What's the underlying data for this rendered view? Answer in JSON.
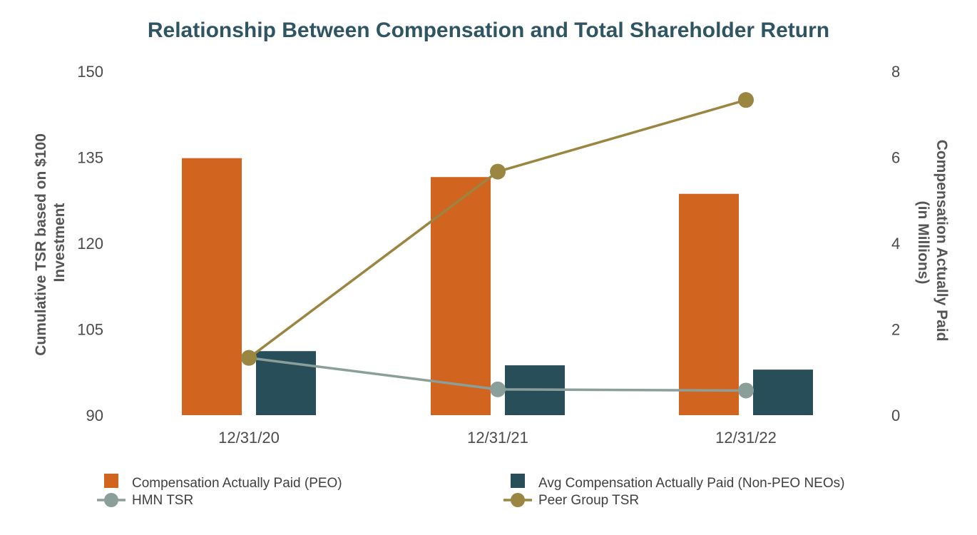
{
  "chart_data": {
    "type": "bar+line",
    "title": "Relationship Between Compensation and Total Shareholder Return",
    "categories": [
      "12/31/20",
      "12/31/21",
      "12/31/22"
    ],
    "left_axis": {
      "label_line1": "Cumulative TSR based on $100",
      "label_line2": "Investment",
      "range": [
        90,
        150
      ],
      "ticks": [
        "150",
        "135",
        "120",
        "105",
        "90"
      ]
    },
    "right_axis": {
      "label_line1": "Compensation Actually Paid",
      "label_line2": "(in Millions)",
      "range": [
        0,
        8
      ],
      "ticks": [
        "8",
        "6",
        "4",
        "2",
        "0"
      ]
    },
    "bar_series": [
      {
        "name": "Compensation Actually Paid (PEO)",
        "axis": "right",
        "color": "#d1641f",
        "values": [
          5.98,
          5.54,
          5.15
        ]
      },
      {
        "name": "Avg Compensation Actually Paid (Non-PEO NEOs)",
        "axis": "right",
        "color": "#284e59",
        "values": [
          1.49,
          1.16,
          1.06
        ]
      }
    ],
    "line_series": [
      {
        "name": "HMN TSR",
        "axis": "left",
        "color": "#8a9f9a",
        "values": [
          100,
          94.5,
          94.3
        ]
      },
      {
        "name": "Peer Group TSR",
        "axis": "left",
        "color": "#9a8541",
        "values": [
          100,
          132.5,
          145
        ]
      }
    ],
    "legend_position": "bottom"
  }
}
